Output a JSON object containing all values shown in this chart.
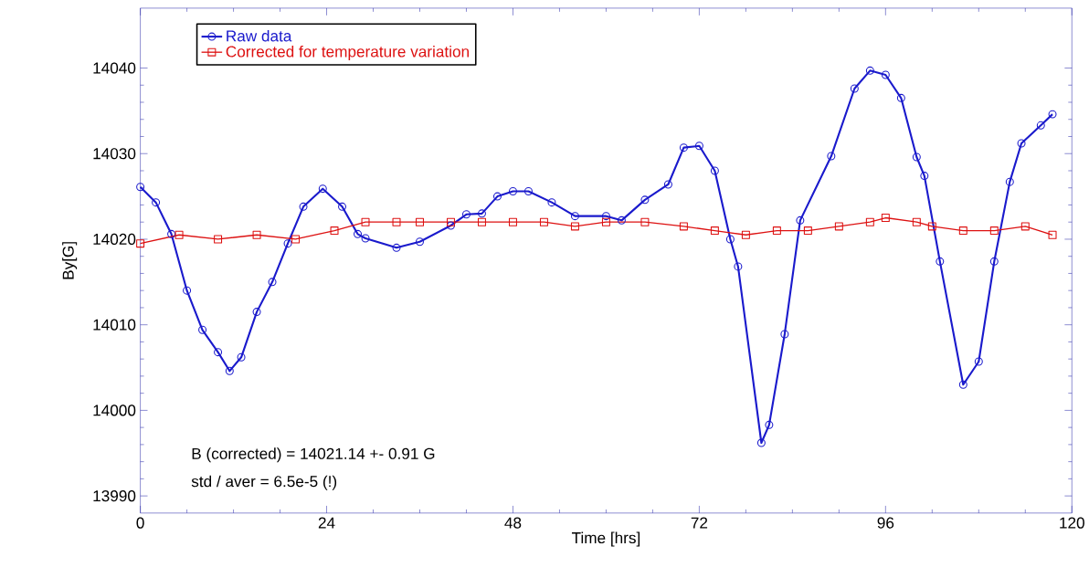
{
  "chart_data": {
    "type": "line",
    "xlabel": "Time [hrs]",
    "ylabel": "By[G]",
    "x": [
      0,
      2,
      4,
      6,
      8,
      10,
      11.5,
      13,
      15,
      17,
      19,
      21,
      23.5,
      26,
      28,
      29,
      33,
      36,
      40,
      42,
      44,
      46,
      48,
      50,
      53,
      56,
      60,
      62,
      65,
      68,
      70,
      72,
      74,
      76,
      77,
      80,
      81,
      83,
      85,
      89,
      92,
      94,
      96,
      98,
      100,
      101,
      103,
      106,
      108,
      110,
      112,
      113.5,
      116,
      117.5
    ],
    "series": [
      {
        "name": "Raw data",
        "color": "#1a1acc",
        "marker": "circle",
        "values": [
          14026.1,
          14024.3,
          14020.6,
          14014,
          14009.4,
          14006.8,
          14004.6,
          14006.2,
          14011.5,
          14015,
          14019.5,
          14023.8,
          14025.9,
          14023.8,
          14020.6,
          14020.1,
          14019,
          14019.7,
          14021.6,
          14022.9,
          14023,
          14025,
          14025.6,
          14025.6,
          14024.3,
          14022.7,
          14022.7,
          14022.2,
          14024.6,
          14026.4,
          14030.7,
          14030.9,
          14028,
          14020,
          14016.8,
          13996.2,
          13998.3,
          14008.9,
          14022.2,
          14029.7,
          14037.6,
          14039.7,
          14039.2,
          14036.5,
          14029.6,
          14027.4,
          14017.4,
          14003,
          14005.7,
          14017.4,
          14026.7,
          14031.2,
          14033.3,
          14034.6
        ]
      },
      {
        "name": "Corrected for temperature variation",
        "color": "#dd1111",
        "marker": "square",
        "x": [
          0,
          5,
          10,
          15,
          20,
          25,
          29,
          33,
          36,
          40,
          44,
          48,
          52,
          56,
          60,
          65,
          70,
          74,
          78,
          82,
          86,
          90,
          94,
          96,
          100,
          102,
          106,
          110,
          114,
          117.5
        ],
        "values": [
          14019.5,
          14020.5,
          14020,
          14020.5,
          14020,
          14021,
          14022,
          14022,
          14022,
          14022,
          14022,
          14022,
          14022,
          14021.5,
          14022,
          14022,
          14021.5,
          14021,
          14020.5,
          14021,
          14021,
          14021.5,
          14022,
          14022.5,
          14022,
          14021.5,
          14021,
          14021,
          14021.5,
          14020.5
        ]
      }
    ],
    "xlim": [
      0,
      120
    ],
    "ylim": [
      13988,
      14047
    ],
    "xticks": [
      0,
      24,
      48,
      72,
      96,
      120
    ],
    "yticks": [
      13990,
      14000,
      14010,
      14020,
      14030,
      14040
    ],
    "grid": false,
    "legend": "top left",
    "line_style": "solid",
    "annotations": [
      "B (corrected) = 14021.14 +- 0.91 G",
      "std / aver = 6.5e-5 (!)"
    ]
  }
}
